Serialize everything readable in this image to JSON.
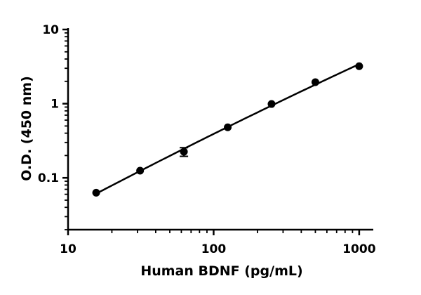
{
  "chart_data": {
    "type": "scatter",
    "xlabel": "Human BDNF (pg/mL)",
    "ylabel": "O.D. (450 nm)",
    "x_scale": "log",
    "y_scale": "log",
    "xlim": [
      10,
      1250
    ],
    "ylim": [
      0.02,
      10
    ],
    "x_ticks": [
      10,
      100,
      1000
    ],
    "x_tick_labels": [
      "10",
      "100",
      "1000"
    ],
    "y_ticks": [
      0.1,
      1,
      10
    ],
    "y_tick_labels": [
      "0.1",
      "1",
      "10"
    ],
    "grid": false,
    "legend": "none",
    "fit_curve": true,
    "marker_color": "#000000",
    "points": [
      {
        "x": 15.6,
        "y": 0.063
      },
      {
        "x": 31.25,
        "y": 0.125
      },
      {
        "x": 62.5,
        "y": 0.225,
        "y_err": 0.03
      },
      {
        "x": 125,
        "y": 0.48
      },
      {
        "x": 250,
        "y": 0.99
      },
      {
        "x": 500,
        "y": 1.95
      },
      {
        "x": 1000,
        "y": 3.2
      }
    ]
  }
}
